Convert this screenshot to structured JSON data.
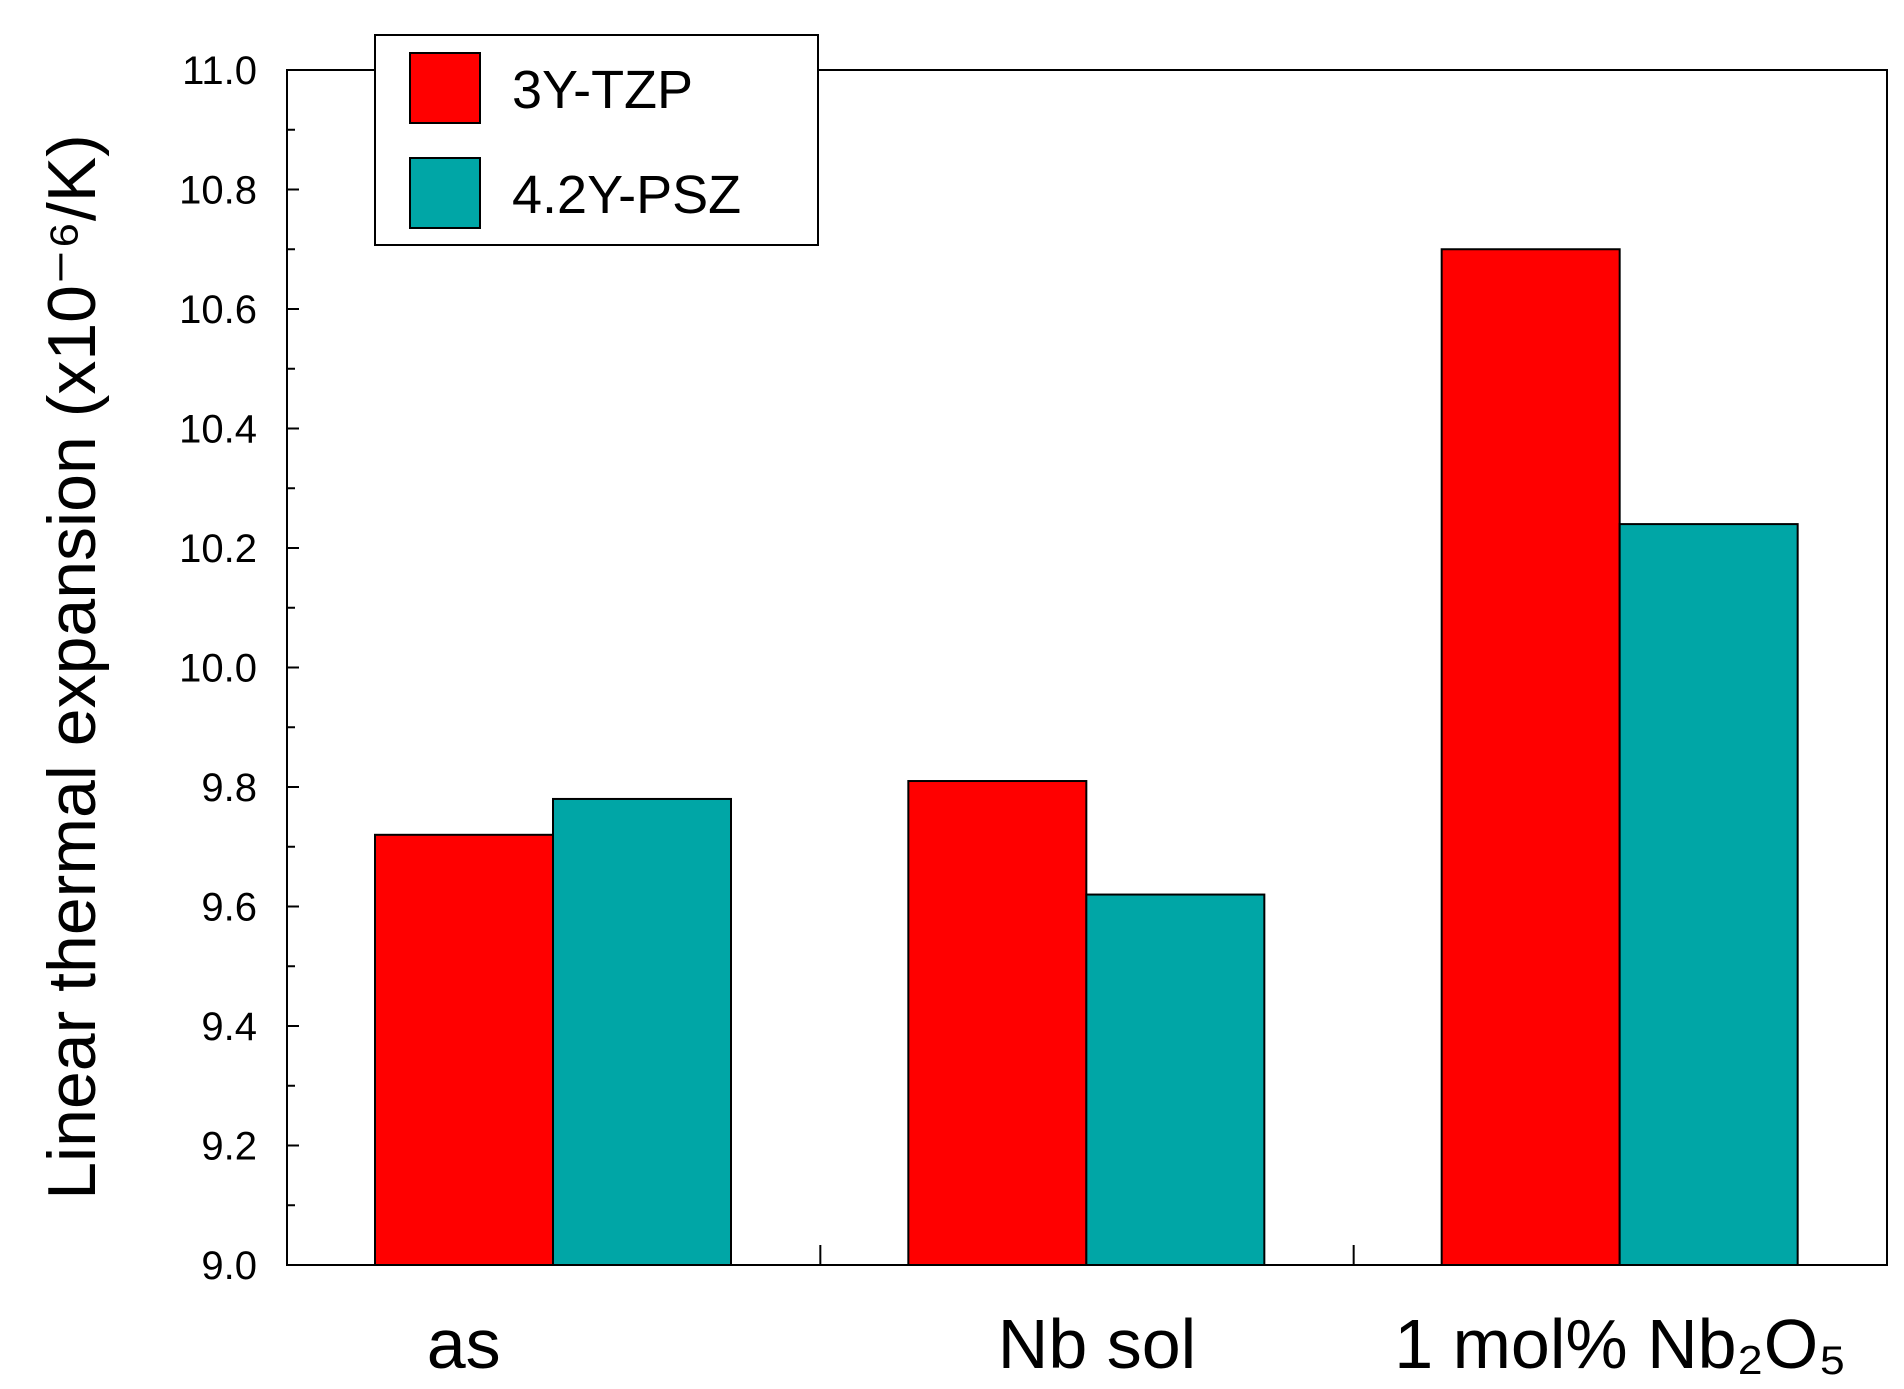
{
  "chart_data": {
    "type": "bar",
    "categories": [
      "as",
      "Nb sol",
      "1 mol% Nb₂O₅"
    ],
    "series": [
      {
        "name": "3Y-TZP",
        "color": "#ff0000",
        "values": [
          9.72,
          9.81,
          10.7
        ]
      },
      {
        "name": "4.2Y-PSZ",
        "color": "#00a6a6",
        "values": [
          9.78,
          9.62,
          10.24
        ]
      }
    ],
    "ylabel": "Linear thermal expansion (x10⁻⁶/K)",
    "ylim": [
      9.0,
      11.0
    ],
    "yticks": [
      "9.0",
      "9.2",
      "9.4",
      "9.6",
      "9.8",
      "10.0",
      "10.2",
      "10.4",
      "10.6",
      "10.8",
      "11.0"
    ],
    "legend_position": "top-left",
    "grid": false
  }
}
